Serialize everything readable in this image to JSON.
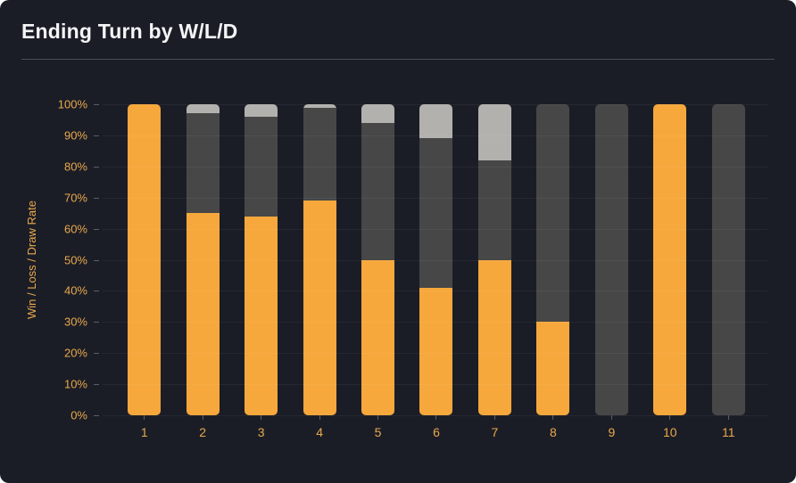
{
  "header": {
    "title": "Ending Turn by W/L/D"
  },
  "chart_data": {
    "type": "bar",
    "stacked": true,
    "orientation": "vertical",
    "title": "Ending Turn by W/L/D",
    "xlabel": "",
    "ylabel": "Win / Loss / Draw Rate",
    "ylim": [
      0,
      100
    ],
    "yticks": [
      "0%",
      "10%",
      "20%",
      "30%",
      "40%",
      "50%",
      "60%",
      "70%",
      "80%",
      "90%",
      "100%"
    ],
    "categories": [
      "1",
      "2",
      "3",
      "4",
      "5",
      "6",
      "7",
      "8",
      "9",
      "10",
      "11"
    ],
    "series": [
      {
        "name": "Win",
        "color": "#f6a83c",
        "values": [
          100,
          65,
          64,
          69,
          50,
          41,
          50,
          30,
          0,
          100,
          0
        ]
      },
      {
        "name": "Loss",
        "color": "#474747",
        "values": [
          0,
          32,
          32,
          30,
          44,
          48,
          32,
          70,
          100,
          0,
          100
        ]
      },
      {
        "name": "Draw",
        "color": "#b2b1ae",
        "values": [
          0,
          3,
          4,
          1,
          6,
          11,
          18,
          0,
          0,
          0,
          0
        ]
      }
    ],
    "legend": "none",
    "grid": "subtle-horizontal",
    "colors": {
      "background": "#1b1d26",
      "tick_text": "#e8a94d",
      "grid_line": "rgba(255,255,255,0.05)",
      "divider": "#4b4e57",
      "title_text": "#f4f5f6"
    }
  }
}
